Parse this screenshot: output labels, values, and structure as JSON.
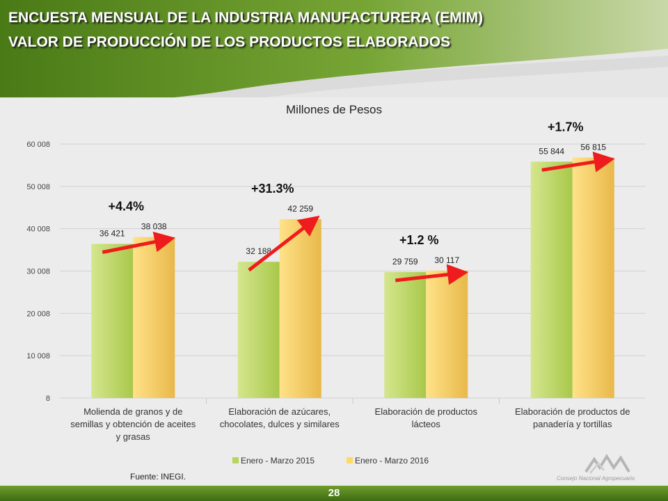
{
  "header": {
    "title_line1": "ENCUESTA MENSUAL DE LA INDUSTRIA MANUFACTURERA (EMIM)",
    "title_line2": "VALOR DE PRODUCCIÓN DE LOS PRODUCTOS ELABORADOS"
  },
  "colors": {
    "series_2015": "#b9d45c",
    "series_2016": "#ffd966",
    "arrow": "#ee1c1c",
    "header_green": "#5a8a1f"
  },
  "chart_data": {
    "type": "bar",
    "title": "Millones de Pesos",
    "categories": [
      [
        "Molienda de granos y de",
        "semillas y obtención de aceites",
        "y grasas"
      ],
      [
        "Elaboración de azúcares,",
        "chocolates, dulces y similares"
      ],
      [
        "Elaboración de productos",
        "lácteos"
      ],
      [
        "Elaboración de productos de",
        "panadería y tortillas"
      ]
    ],
    "series": [
      {
        "name": "Enero - Marzo 2015",
        "values": [
          36421,
          32188,
          29759,
          55844
        ],
        "labels": [
          "36 421",
          "32 188",
          "29 759",
          "55 844"
        ]
      },
      {
        "name": "Enero - Marzo 2016",
        "values": [
          38038,
          42259,
          30117,
          56815
        ],
        "labels": [
          "38 038",
          "42 259",
          "30 117",
          "56 815"
        ]
      }
    ],
    "changes": [
      "+4.4%",
      "+31.3%",
      "+1.2 %",
      "+1.7%"
    ],
    "ylim": [
      8,
      60008
    ],
    "yticks": [
      8,
      10008,
      20008,
      30008,
      40008,
      50008,
      60008
    ],
    "ytick_labels": [
      "8",
      "10 008",
      "20 008",
      "30 008",
      "40 008",
      "50 008",
      "60 008"
    ],
    "grid": true,
    "legend": "bottom"
  },
  "footer": {
    "source": "Fuente: INEGI.",
    "page_number": "28",
    "logo_text": "Consejo Nacional Agropecuario"
  }
}
